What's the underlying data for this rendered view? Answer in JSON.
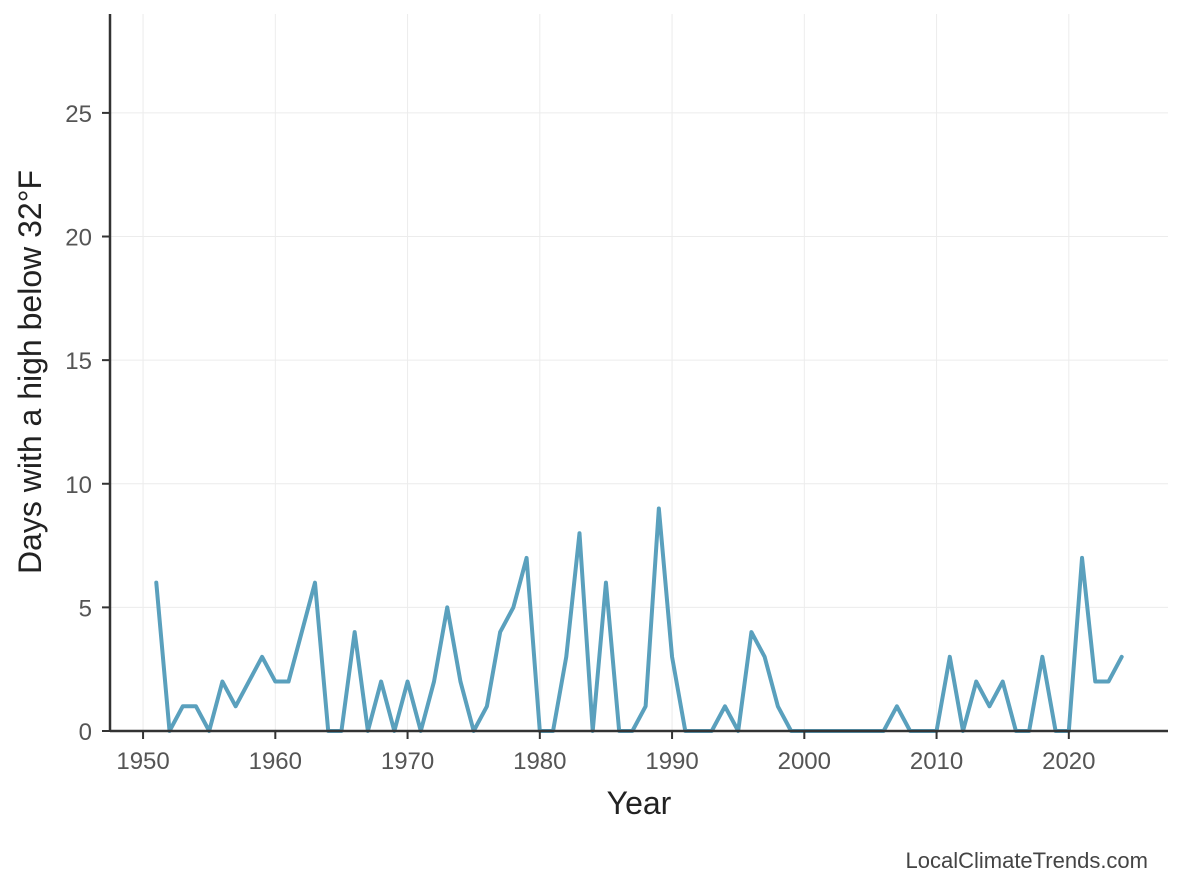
{
  "chart_data": {
    "type": "line",
    "xlabel": "Year",
    "ylabel": "Days with a high below 32°F",
    "xlim": [
      1947.5,
      2027.5
    ],
    "ylim": [
      0,
      29
    ],
    "xticks": [
      1950,
      1960,
      1970,
      1980,
      1990,
      2000,
      2010,
      2020
    ],
    "yticks": [
      0,
      5,
      10,
      15,
      20,
      25
    ],
    "grid": true,
    "line_color": "#5aa0bd",
    "series": [
      {
        "x": [
          1951,
          1952,
          1953,
          1954,
          1955,
          1956,
          1957,
          1958,
          1959,
          1960,
          1961,
          1962,
          1963,
          1964,
          1965,
          1966,
          1967,
          1968,
          1969,
          1970,
          1971,
          1972,
          1973,
          1974,
          1975,
          1976,
          1977,
          1978,
          1979,
          1980,
          1981,
          1982,
          1983,
          1984,
          1985,
          1986,
          1987,
          1988,
          1989,
          1990,
          1991,
          1992,
          1993,
          1994,
          1995,
          1996,
          1997,
          1998,
          1999,
          2000,
          2001,
          2002,
          2003,
          2004,
          2005,
          2006,
          2007,
          2008,
          2009,
          2010,
          2011,
          2012,
          2013,
          2014,
          2015,
          2016,
          2017,
          2018,
          2019,
          2020,
          2021,
          2022,
          2023,
          2024
        ],
        "values": [
          6,
          0,
          1,
          1,
          0,
          2,
          1,
          2,
          3,
          2,
          2,
          4,
          6,
          0,
          0,
          4,
          0,
          2,
          0,
          2,
          0,
          2,
          5,
          2,
          0,
          1,
          4,
          5,
          7,
          0,
          0,
          3,
          8,
          0,
          6,
          0,
          0,
          1,
          9,
          3,
          0,
          0,
          0,
          1,
          0,
          4,
          3,
          1,
          0,
          0,
          0,
          0,
          0,
          0,
          0,
          0,
          1,
          0,
          0,
          0,
          3,
          0,
          2,
          1,
          2,
          0,
          0,
          3,
          0,
          0,
          7,
          2,
          2,
          3
        ]
      }
    ]
  },
  "credit": "LocalClimateTrends.com"
}
